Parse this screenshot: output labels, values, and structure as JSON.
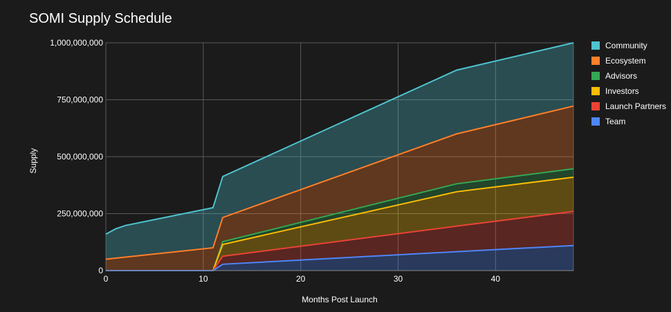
{
  "chart_data": {
    "type": "area",
    "stacked": true,
    "title": "SOMI Supply Schedule",
    "xlabel": "Months Post Launch",
    "ylabel": "Supply",
    "xlim": [
      0,
      48
    ],
    "ylim": [
      0,
      1000000000
    ],
    "x_ticks": [
      0,
      10,
      20,
      30,
      40
    ],
    "y_ticks": [
      0,
      250000000,
      500000000,
      750000000,
      1000000000
    ],
    "y_tick_labels": [
      "0",
      "250,000,000",
      "500,000,000",
      "750,000,000",
      "1,000,000,000"
    ],
    "grid": true,
    "legend_position": "right",
    "series": [
      {
        "name": "Community",
        "color": "#4fc3cf",
        "points": [
          [
            0,
            160000000
          ],
          [
            1,
            183000000
          ],
          [
            2,
            198000000
          ],
          [
            11,
            276000000
          ],
          [
            12,
            413000000
          ],
          [
            36,
            880000000
          ],
          [
            48,
            1000000000
          ]
        ]
      },
      {
        "name": "Ecosystem",
        "color": "#ff7f2a",
        "points": [
          [
            0,
            50000000
          ],
          [
            11,
            100000000
          ],
          [
            12,
            233000000
          ],
          [
            36,
            600000000
          ],
          [
            48,
            722000000
          ]
        ]
      },
      {
        "name": "Advisors",
        "color": "#34a853",
        "points": [
          [
            0,
            0
          ],
          [
            11,
            0
          ],
          [
            12,
            127000000
          ],
          [
            36,
            381000000
          ],
          [
            48,
            447000000
          ]
        ]
      },
      {
        "name": "Investors",
        "color": "#fbbc04",
        "points": [
          [
            0,
            0
          ],
          [
            11,
            0
          ],
          [
            12,
            115000000
          ],
          [
            36,
            346000000
          ],
          [
            48,
            410000000
          ]
        ]
      },
      {
        "name": "Launch Partners",
        "color": "#ea4335",
        "points": [
          [
            0,
            0
          ],
          [
            11,
            0
          ],
          [
            12,
            63000000
          ],
          [
            36,
            195000000
          ],
          [
            48,
            260000000
          ]
        ]
      },
      {
        "name": "Team",
        "color": "#4f86f7",
        "points": [
          [
            0,
            0
          ],
          [
            11,
            0
          ],
          [
            12,
            28000000
          ],
          [
            36,
            83000000
          ],
          [
            48,
            110000000
          ]
        ]
      }
    ]
  }
}
